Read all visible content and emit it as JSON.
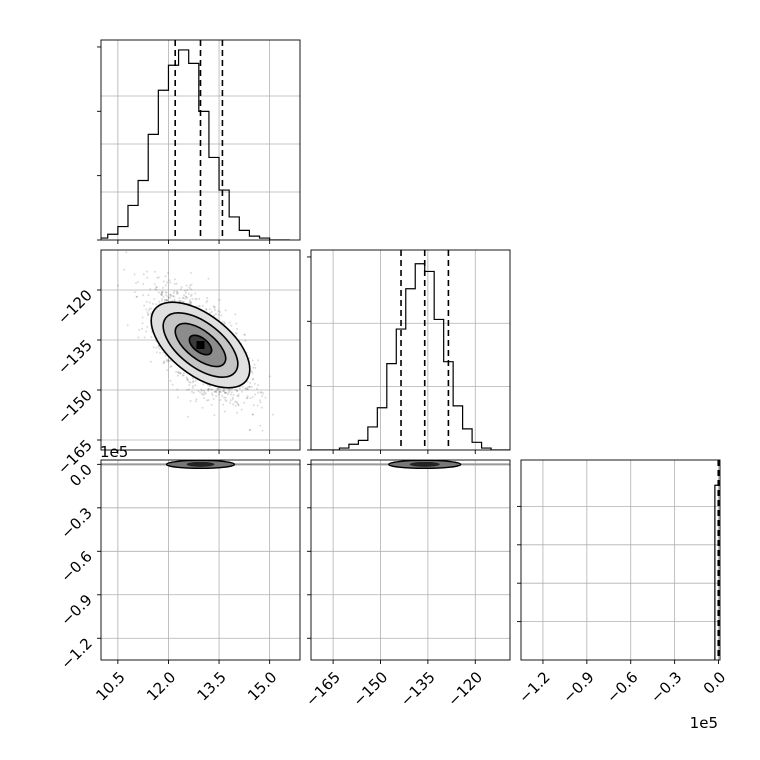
{
  "chart_data": {
    "type": "corner",
    "grid": true,
    "panels": [
      {
        "id": "hist-p1",
        "type": "histogram",
        "xlim": [
          10.0,
          15.9
        ],
        "ylim": [
          0,
          1.0
        ],
        "bins": [
          9.3,
          9.6,
          9.9,
          10.2,
          10.5,
          10.8,
          11.1,
          11.4,
          11.7,
          12.0,
          12.3,
          12.6,
          12.9,
          13.2,
          13.5,
          13.8,
          14.1,
          14.4,
          14.7,
          15.0,
          15.3,
          15.6
        ],
        "counts": [
          0.0,
          0.0,
          0.01,
          0.03,
          0.07,
          0.18,
          0.31,
          0.55,
          0.78,
          0.91,
          0.99,
          0.92,
          0.67,
          0.43,
          0.26,
          0.12,
          0.05,
          0.02,
          0.01,
          0.0,
          0.0
        ],
        "quantiles": [
          12.2,
          12.95,
          13.6
        ]
      },
      {
        "id": "scatter-p2-p1",
        "type": "2d-density",
        "xlim": [
          10.0,
          15.9
        ],
        "ylim": [
          -168,
          -108
        ],
        "yticks": [
          -120,
          -135,
          -150,
          -165
        ],
        "center": [
          12.95,
          -136.5
        ],
        "std": [
          0.65,
          7.5
        ],
        "correlation": -0.6,
        "contour_levels": [
          0.12,
          0.39,
          0.86,
          1.5
        ]
      },
      {
        "id": "hist-p2",
        "type": "histogram",
        "xlim": [
          -172,
          -109
        ],
        "ylim": [
          0,
          1.0
        ],
        "bins": [
          -172,
          -169,
          -166,
          -163,
          -160,
          -157,
          -154,
          -151,
          -148,
          -145,
          -142,
          -139,
          -136,
          -133,
          -130,
          -127,
          -124,
          -121,
          -118,
          -115,
          -112,
          -109
        ],
        "counts": [
          0.0,
          0.0,
          0.0,
          0.01,
          0.03,
          0.05,
          0.12,
          0.22,
          0.45,
          0.63,
          0.84,
          0.97,
          0.93,
          0.68,
          0.46,
          0.23,
          0.11,
          0.04,
          0.01,
          0.0,
          0.0
        ],
        "quantiles": [
          -143.5,
          -136.0,
          -128.5
        ]
      },
      {
        "id": "scatter-p3-p1",
        "type": "2d-density",
        "xlim": [
          10.0,
          15.9
        ],
        "ylim": [
          -135000,
          3000
        ],
        "yticks": [
          0.0,
          -0.3,
          -0.6,
          -0.9,
          -1.2
        ],
        "y_offset_label": "1e5",
        "blob_y": 0
      },
      {
        "id": "scatter-p3-p2",
        "type": "2d-density",
        "xlim": [
          -172,
          -109
        ],
        "ylim": [
          -135000,
          3000
        ],
        "blob_y": 0
      },
      {
        "id": "hist-p3",
        "type": "histogram",
        "xlim": [
          -135000,
          1000
        ],
        "ylim": [
          0,
          1.0
        ],
        "bins": [
          -2500,
          -500,
          500
        ],
        "counts": [
          0.91,
          0.91
        ],
        "quantiles": [
          -200,
          0,
          200
        ]
      }
    ],
    "axes_ticks": {
      "x1": [
        "10.5",
        "12.0",
        "13.5",
        "15.0"
      ],
      "x1_values": [
        10.5,
        12.0,
        13.5,
        15.0
      ],
      "x2": [
        "−165",
        "−150",
        "−135",
        "−120"
      ],
      "x2_values": [
        -165,
        -150,
        -135,
        -120
      ],
      "x3": [
        "−1.2",
        "−0.9",
        "−0.6",
        "−0.3",
        "0.0"
      ],
      "x3_values": [
        -120000,
        -90000,
        -60000,
        -30000,
        0
      ],
      "y2": [
        "−120",
        "−135",
        "−150",
        "−165"
      ],
      "y2_values": [
        -120,
        -135,
        -150,
        -165
      ],
      "y3": [
        "0.0",
        "−0.3",
        "−0.6",
        "−0.9",
        "−1.2"
      ],
      "y3_values": [
        0,
        -30000,
        -60000,
        -90000,
        -120000
      ],
      "x3_offset_label": "1e5",
      "y3_offset_label": "1e5"
    }
  }
}
